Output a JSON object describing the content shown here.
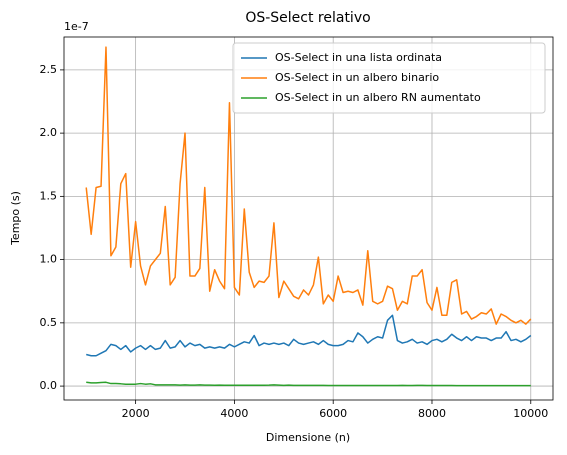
{
  "chart_data": {
    "type": "line",
    "title": "OS-Select relativo",
    "xlabel": "Dimensione (n)",
    "ylabel": "Tempo (s)",
    "y_offset_label": "1e-7",
    "x": [
      1000,
      1100,
      1200,
      1300,
      1400,
      1500,
      1600,
      1700,
      1800,
      1900,
      2000,
      2100,
      2200,
      2300,
      2400,
      2500,
      2600,
      2700,
      2800,
      2900,
      3000,
      3100,
      3200,
      3300,
      3400,
      3500,
      3600,
      3700,
      3800,
      3900,
      4000,
      4100,
      4200,
      4300,
      4400,
      4500,
      4600,
      4700,
      4800,
      4900,
      5000,
      5100,
      5200,
      5300,
      5400,
      5500,
      5600,
      5700,
      5800,
      5900,
      6000,
      6100,
      6200,
      6300,
      6400,
      6500,
      6600,
      6700,
      6800,
      6900,
      7000,
      7100,
      7200,
      7300,
      7400,
      7500,
      7600,
      7700,
      7800,
      7900,
      8000,
      8100,
      8200,
      8300,
      8400,
      8500,
      8600,
      8700,
      8800,
      8900,
      9000,
      9100,
      9200,
      9300,
      9400,
      9500,
      9600,
      9700,
      9800,
      9900,
      10000
    ],
    "series": [
      {
        "name": "OS-Select in una lista ordinata",
        "color": "#1f77b4",
        "values": [
          0.25,
          0.24,
          0.24,
          0.26,
          0.28,
          0.33,
          0.32,
          0.29,
          0.32,
          0.27,
          0.3,
          0.32,
          0.29,
          0.32,
          0.29,
          0.3,
          0.36,
          0.3,
          0.31,
          0.36,
          0.31,
          0.34,
          0.32,
          0.33,
          0.3,
          0.31,
          0.3,
          0.31,
          0.3,
          0.33,
          0.31,
          0.33,
          0.35,
          0.34,
          0.4,
          0.32,
          0.34,
          0.33,
          0.34,
          0.33,
          0.34,
          0.32,
          0.37,
          0.34,
          0.33,
          0.34,
          0.35,
          0.33,
          0.36,
          0.33,
          0.32,
          0.32,
          0.33,
          0.36,
          0.35,
          0.42,
          0.39,
          0.34,
          0.37,
          0.39,
          0.38,
          0.52,
          0.56,
          0.36,
          0.34,
          0.35,
          0.37,
          0.34,
          0.35,
          0.33,
          0.36,
          0.37,
          0.35,
          0.37,
          0.41,
          0.38,
          0.36,
          0.39,
          0.36,
          0.39,
          0.38,
          0.38,
          0.36,
          0.38,
          0.38,
          0.43,
          0.36,
          0.37,
          0.35,
          0.37,
          0.4
        ]
      },
      {
        "name": "OS-Select in un albero binario",
        "color": "#ff7f0e",
        "values": [
          1.57,
          1.2,
          1.57,
          1.58,
          2.68,
          1.03,
          1.1,
          1.6,
          1.68,
          0.94,
          1.3,
          0.95,
          0.8,
          0.95,
          1.0,
          1.05,
          1.42,
          0.8,
          0.86,
          1.6,
          2.0,
          0.87,
          0.87,
          0.93,
          1.57,
          0.75,
          0.92,
          0.83,
          0.77,
          2.24,
          0.78,
          0.72,
          1.4,
          0.9,
          0.78,
          0.83,
          0.82,
          0.87,
          1.29,
          0.7,
          0.83,
          0.77,
          0.71,
          0.69,
          0.76,
          0.72,
          0.8,
          1.02,
          0.65,
          0.72,
          0.67,
          0.87,
          0.74,
          0.75,
          0.74,
          0.76,
          0.64,
          1.07,
          0.67,
          0.65,
          0.67,
          0.79,
          0.77,
          0.6,
          0.67,
          0.65,
          0.87,
          0.87,
          0.92,
          0.66,
          0.6,
          0.78,
          0.56,
          0.56,
          0.82,
          0.84,
          0.57,
          0.59,
          0.53,
          0.55,
          0.58,
          0.57,
          0.61,
          0.49,
          0.57,
          0.55,
          0.52,
          0.5,
          0.52,
          0.49,
          0.53
        ]
      },
      {
        "name": "OS-Select in un albero RN aumentato",
        "color": "#2ca02c",
        "values": [
          0.03,
          0.025,
          0.025,
          0.028,
          0.03,
          0.02,
          0.02,
          0.018,
          0.015,
          0.015,
          0.015,
          0.02,
          0.015,
          0.018,
          0.01,
          0.01,
          0.01,
          0.01,
          0.01,
          0.008,
          0.01,
          0.008,
          0.008,
          0.01,
          0.008,
          0.008,
          0.007,
          0.008,
          0.007,
          0.007,
          0.007,
          0.007,
          0.007,
          0.007,
          0.007,
          0.007,
          0.007,
          0.008,
          0.01,
          0.008,
          0.006,
          0.008,
          0.006,
          0.006,
          0.006,
          0.006,
          0.006,
          0.006,
          0.006,
          0.005,
          0.005,
          0.005,
          0.005,
          0.005,
          0.005,
          0.005,
          0.005,
          0.005,
          0.005,
          0.005,
          0.005,
          0.005,
          0.005,
          0.005,
          0.006,
          0.005,
          0.005,
          0.006,
          0.006,
          0.005,
          0.005,
          0.005,
          0.005,
          0.005,
          0.005,
          0.004,
          0.004,
          0.004,
          0.004,
          0.004,
          0.004,
          0.004,
          0.004,
          0.004,
          0.004,
          0.004,
          0.004,
          0.004,
          0.004,
          0.004,
          0.004
        ]
      }
    ],
    "xlim": [
      550,
      10450
    ],
    "ylim": [
      -0.11,
      2.76
    ],
    "xticks": [
      2000,
      4000,
      6000,
      8000,
      10000
    ],
    "yticks": [
      {
        "value": 0,
        "label": "0.0"
      },
      0.5,
      {
        "value": 1,
        "label": "1.0"
      },
      1.5,
      {
        "value": 2,
        "label": "2.0"
      },
      2.5
    ],
    "grid": true,
    "legend": "upper right"
  }
}
